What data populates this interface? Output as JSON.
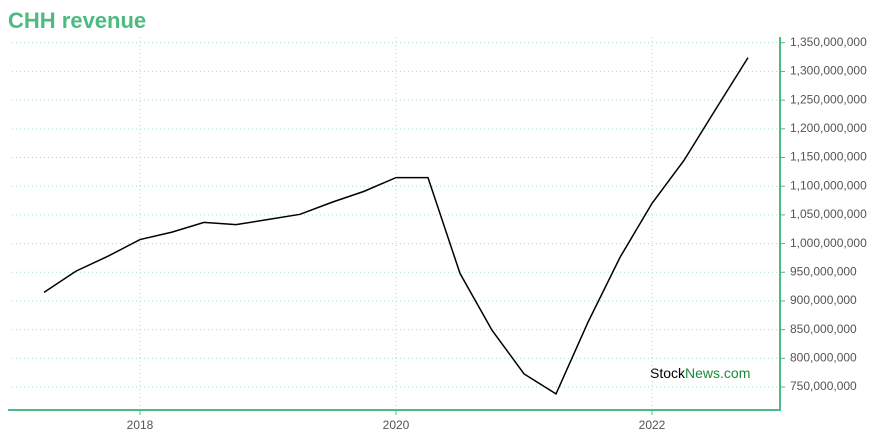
{
  "chart_data": {
    "type": "line",
    "title": "CHH revenue",
    "x": [
      2017.25,
      2017.5,
      2017.75,
      2018,
      2018.25,
      2018.5,
      2018.75,
      2019,
      2019.25,
      2019.5,
      2019.75,
      2020,
      2020.25,
      2020.5,
      2020.75,
      2021,
      2021.25,
      2021.5,
      2021.75,
      2022,
      2022.25,
      2022.5,
      2022.75
    ],
    "series": [
      {
        "name": "CHH revenue",
        "color": "#000000",
        "values": [
          915000000,
          952000000,
          978000000,
          1007000000,
          1020000000,
          1037000000,
          1033000000,
          1042000000,
          1051000000,
          1072000000,
          1091000000,
          1115000000,
          1115000000,
          948000000,
          849000000,
          773000000,
          738000000,
          863000000,
          976000000,
          1070000000,
          1145000000,
          1235000000,
          1324000000
        ]
      }
    ],
    "xlim": [
      2017,
      2023
    ],
    "xticks": [
      2018,
      2020,
      2022
    ],
    "ylim": [
      710000000,
      1360000000
    ],
    "yticks": [
      {
        "value": 750000000,
        "label": "750,000,000"
      },
      {
        "value": 800000000,
        "label": "800,000,000"
      },
      {
        "value": 850000000,
        "label": "850,000,000"
      },
      {
        "value": 900000000,
        "label": "900,000,000"
      },
      {
        "value": 950000000,
        "label": "950,000,000"
      },
      {
        "value": 1000000000,
        "label": "1,000,000,000"
      },
      {
        "value": 1050000000,
        "label": "1,050,000,000"
      },
      {
        "value": 1100000000,
        "label": "1,100,000,000"
      },
      {
        "value": 1150000000,
        "label": "1,150,000,000"
      },
      {
        "value": 1200000000,
        "label": "1,200,000,000"
      },
      {
        "value": 1250000000,
        "label": "1,250,000,000"
      },
      {
        "value": 1300000000,
        "label": "1,300,000,000"
      },
      {
        "value": 1350000000,
        "label": "1,350,000,000"
      }
    ],
    "grid": true,
    "watermark_stock": "Stock",
    "watermark_news": "News.com"
  }
}
